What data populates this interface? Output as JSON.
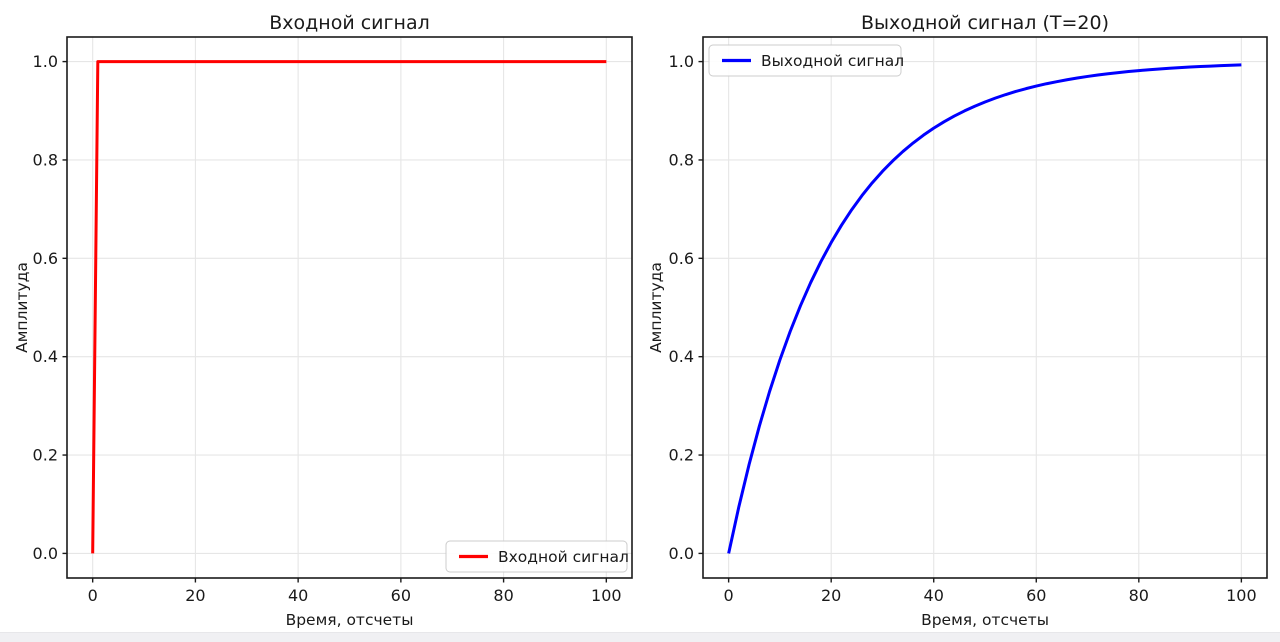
{
  "figure": {
    "background": "#ffffff",
    "bottom_bar_color": "#f0f0f3"
  },
  "chart_data": [
    {
      "type": "line",
      "title": "Входной сигнал",
      "xlabel": "Время, отсчеты",
      "ylabel": "Амплитуда",
      "xlim": [
        -5,
        105
      ],
      "ylim": [
        -0.05,
        1.05
      ],
      "xticks": [
        0,
        20,
        40,
        60,
        80,
        100
      ],
      "xtick_labels": [
        "0",
        "20",
        "40",
        "60",
        "80",
        "100"
      ],
      "yticks": [
        0,
        0.2,
        0.4,
        0.6,
        0.8,
        1.0
      ],
      "ytick_labels": [
        "0.0",
        "0.2",
        "0.4",
        "0.6",
        "0.8",
        "1.0"
      ],
      "grid": true,
      "legend": {
        "position": "lower right",
        "entries": [
          {
            "label": "Входной сигнал",
            "color": "#ff0000"
          }
        ]
      },
      "series": [
        {
          "name": "Входной сигнал",
          "color": "#ff0000",
          "linewidth": 3,
          "x": [
            0,
            1,
            100
          ],
          "y": [
            0,
            1,
            1
          ]
        }
      ]
    },
    {
      "type": "line",
      "title": "Выходной сигнал (T=20)",
      "xlabel": "Время, отсчеты",
      "ylabel": "Амплитуда",
      "xlim": [
        -5,
        105
      ],
      "ylim": [
        -0.05,
        1.05
      ],
      "xticks": [
        0,
        20,
        40,
        60,
        80,
        100
      ],
      "xtick_labels": [
        "0",
        "20",
        "40",
        "60",
        "80",
        "100"
      ],
      "yticks": [
        0,
        0.2,
        0.4,
        0.6,
        0.8,
        1.0
      ],
      "ytick_labels": [
        "0.0",
        "0.2",
        "0.4",
        "0.6",
        "0.8",
        "1.0"
      ],
      "grid": true,
      "legend": {
        "position": "upper left",
        "entries": [
          {
            "label": "Выходной сигнал",
            "color": "#0000ff"
          }
        ]
      },
      "series": [
        {
          "name": "Выходной сигнал",
          "color": "#0000ff",
          "linewidth": 3,
          "x": [
            0,
            2,
            4,
            6,
            8,
            10,
            12,
            14,
            16,
            18,
            20,
            22,
            24,
            26,
            28,
            30,
            32,
            34,
            36,
            38,
            40,
            42,
            44,
            46,
            48,
            50,
            52,
            54,
            56,
            58,
            60,
            62,
            64,
            66,
            68,
            70,
            72,
            74,
            76,
            78,
            80,
            82,
            84,
            86,
            88,
            90,
            92,
            94,
            96,
            98,
            100
          ],
          "y": [
            0,
            0.0952,
            0.1813,
            0.2592,
            0.3297,
            0.3935,
            0.4512,
            0.5034,
            0.5507,
            0.5934,
            0.6321,
            0.6671,
            0.6988,
            0.7275,
            0.7534,
            0.7769,
            0.7981,
            0.8173,
            0.8347,
            0.8504,
            0.8647,
            0.8775,
            0.8892,
            0.8997,
            0.9093,
            0.9179,
            0.9257,
            0.9328,
            0.9392,
            0.945,
            0.9502,
            0.955,
            0.9592,
            0.9631,
            0.9666,
            0.9698,
            0.9727,
            0.9753,
            0.9776,
            0.9798,
            0.9817,
            0.9834,
            0.985,
            0.9864,
            0.9877,
            0.9889,
            0.9899,
            0.9909,
            0.9918,
            0.9926,
            0.9933
          ]
        }
      ]
    }
  ]
}
